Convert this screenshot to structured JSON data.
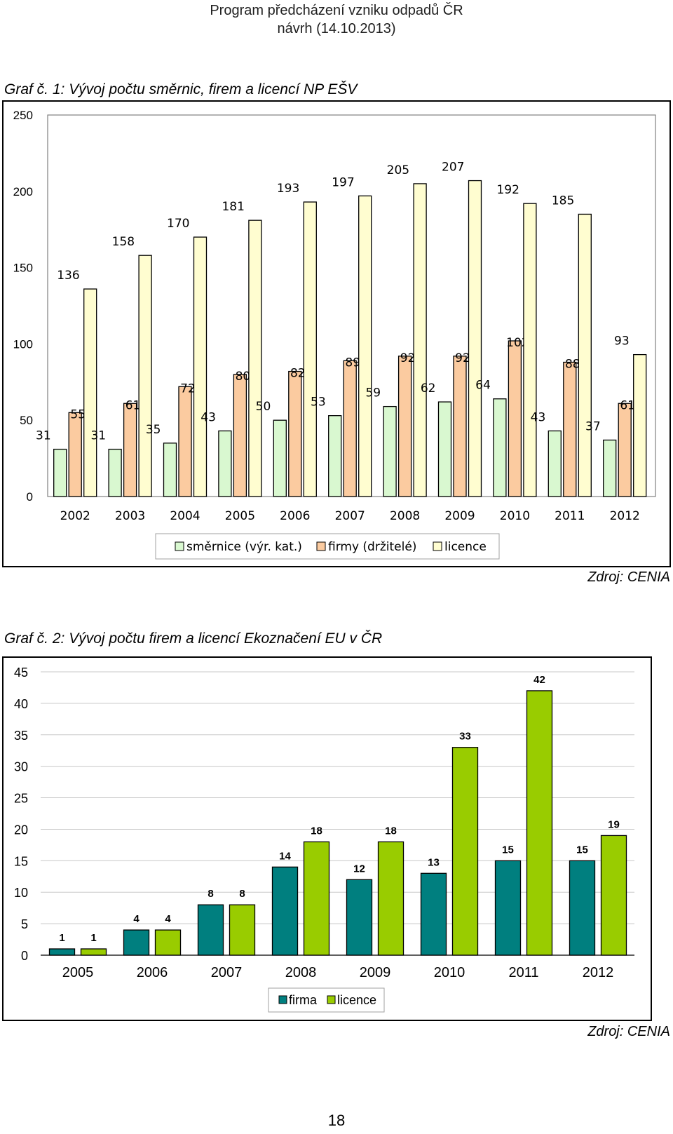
{
  "header": {
    "line1": "Program předcházení vzniku odpadů ČR",
    "line2": "návrh (14.10.2013)"
  },
  "page_number": "18",
  "chart_data": [
    {
      "type": "bar",
      "caption": "Graf č. 1: Vývoj počtu směrnic, firem a licencí NP EŠV",
      "source": "Zdroj: CENIA",
      "categories": [
        "2002",
        "2003",
        "2004",
        "2005",
        "2006",
        "2007",
        "2008",
        "2009",
        "2010",
        "2011",
        "2012"
      ],
      "series": [
        {
          "name": "směrnice (výr. kat.)",
          "color": "#d9f8d0",
          "values": [
            31,
            31,
            35,
            43,
            50,
            53,
            59,
            62,
            64,
            43,
            37
          ]
        },
        {
          "name": "firmy (držitelé)",
          "color": "#fbcba0",
          "values": [
            55,
            61,
            72,
            80,
            82,
            89,
            92,
            92,
            102,
            88,
            61
          ]
        },
        {
          "name": "licence",
          "color": "#fffdd0",
          "values": [
            136,
            158,
            170,
            181,
            193,
            197,
            205,
            207,
            192,
            185,
            93
          ]
        }
      ],
      "yticks": [
        "0",
        "50",
        "100",
        "150",
        "200",
        "250"
      ],
      "ylim": [
        0,
        250
      ],
      "grid": false,
      "legend": "bottom"
    },
    {
      "type": "bar",
      "caption": "Graf č. 2: Vývoj počtu firem a licencí Ekoznačení EU v ČR",
      "source": "Zdroj: CENIA",
      "categories": [
        "2005",
        "2006",
        "2007",
        "2008",
        "2009",
        "2010",
        "2011",
        "2012"
      ],
      "series": [
        {
          "name": "firma",
          "color": "#007f7f",
          "values": [
            1,
            4,
            8,
            14,
            12,
            13,
            15,
            15
          ]
        },
        {
          "name": "licence",
          "color": "#99cc00",
          "values": [
            1,
            4,
            8,
            18,
            18,
            33,
            42,
            19
          ]
        }
      ],
      "yticks": [
        "0",
        "5",
        "10",
        "15",
        "20",
        "25",
        "30",
        "35",
        "40",
        "45"
      ],
      "ylim": [
        0,
        45
      ],
      "grid": true,
      "legend": "bottom"
    }
  ]
}
